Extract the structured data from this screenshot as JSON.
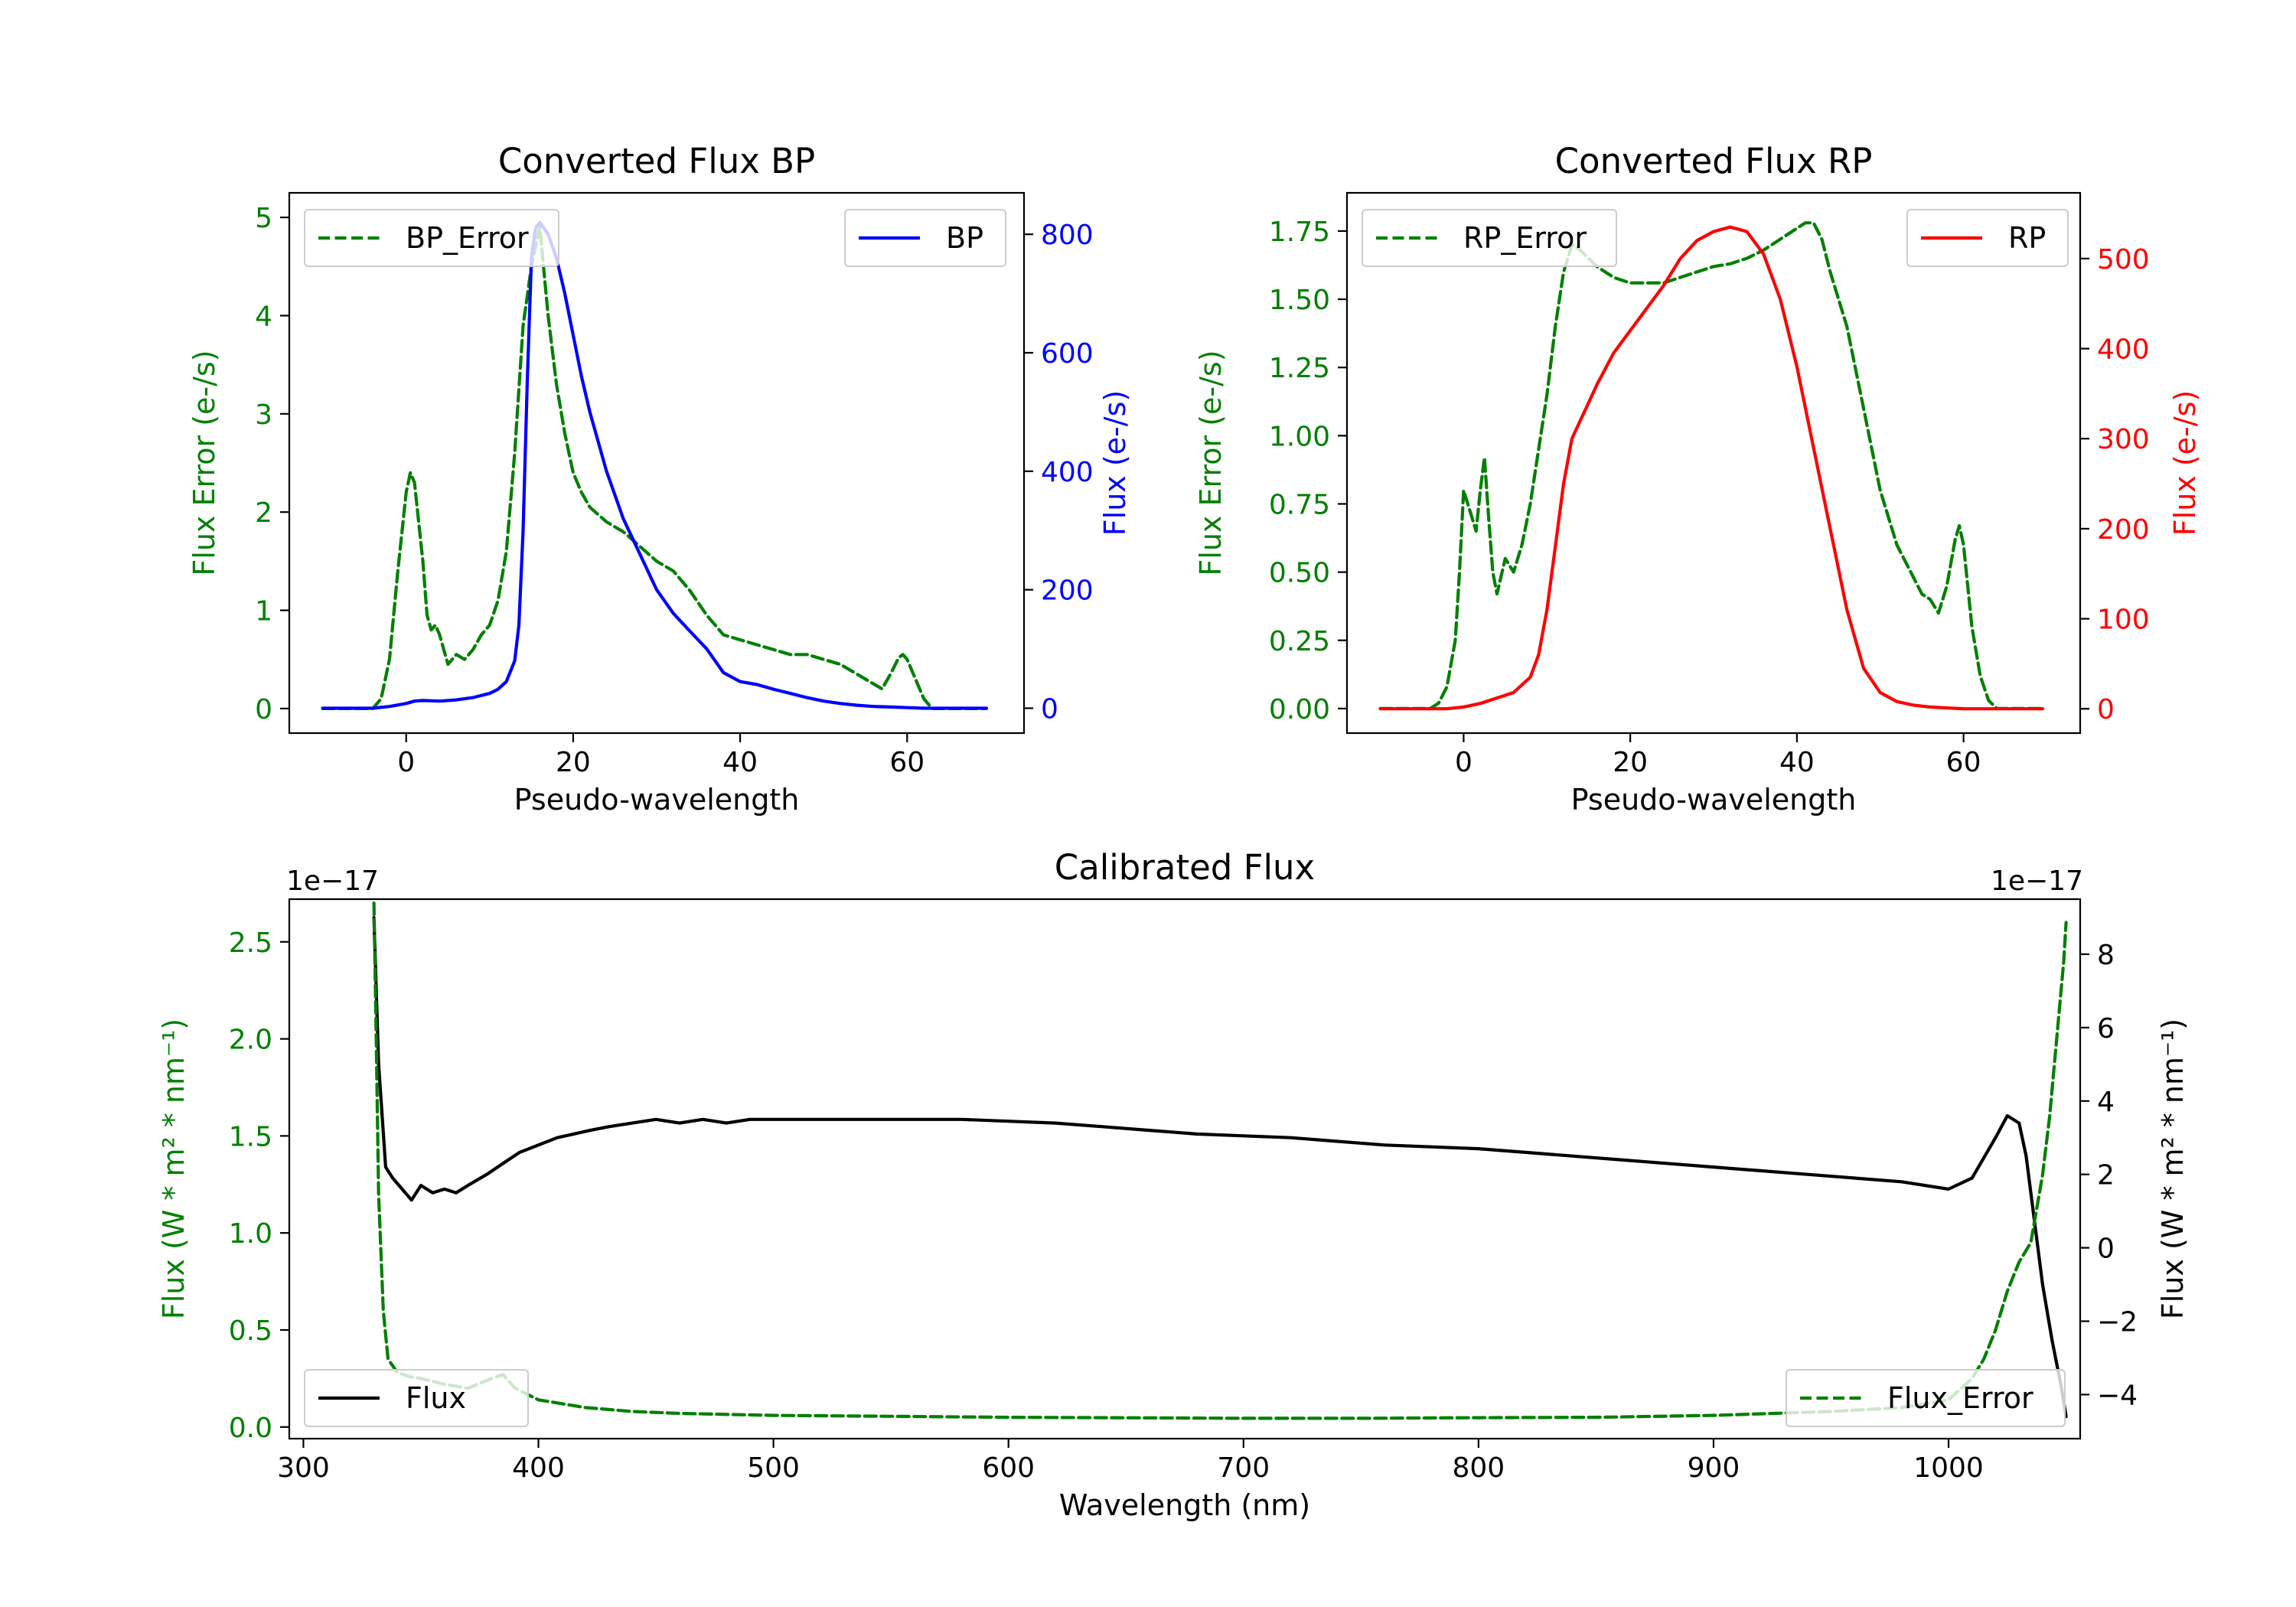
{
  "chart_data": [
    {
      "id": "bp",
      "type": "line",
      "title": "Converted Flux BP",
      "xlabel": "Pseudo-wavelength",
      "xlim": [
        -14,
        74
      ],
      "xticks": [
        0,
        20,
        40,
        60
      ],
      "left_axis": {
        "label": "Flux Error (e-/s)",
        "color": "#008000",
        "ylim": [
          -0.25,
          5.25
        ],
        "ticks": [
          0,
          1,
          2,
          3,
          4,
          5
        ],
        "tick_labels": [
          "0",
          "1",
          "2",
          "3",
          "4",
          "5"
        ]
      },
      "right_axis": {
        "label": "Flux (e-/s)",
        "color": "#0000ff",
        "ylim": [
          -42,
          870
        ],
        "ticks": [
          0,
          200,
          400,
          600,
          800
        ],
        "tick_labels": [
          "0",
          "200",
          "400",
          "600",
          "800"
        ]
      },
      "series": [
        {
          "name": "BP_Error",
          "axis": "left",
          "color": "#008000",
          "dash": "dashed",
          "legend": "top-left",
          "x": [
            -10,
            -4,
            -3,
            -2,
            -1,
            0,
            0.5,
            1,
            2,
            2.5,
            3,
            3.5,
            4,
            5,
            6,
            7,
            8,
            9,
            10,
            11,
            12,
            13,
            14,
            15,
            16,
            17,
            18,
            19,
            20,
            21,
            22,
            24,
            26,
            28,
            30,
            32,
            34,
            36,
            38,
            40,
            42,
            44,
            46,
            48,
            50,
            52,
            54,
            56,
            57,
            58,
            59,
            59.5,
            60,
            61,
            62,
            63,
            69.5
          ],
          "y": [
            0,
            0,
            0.1,
            0.5,
            1.4,
            2.2,
            2.4,
            2.3,
            1.5,
            0.95,
            0.8,
            0.85,
            0.75,
            0.45,
            0.55,
            0.5,
            0.6,
            0.75,
            0.85,
            1.1,
            1.6,
            2.6,
            3.9,
            4.5,
            4.9,
            4.0,
            3.3,
            2.8,
            2.4,
            2.2,
            2.05,
            1.9,
            1.8,
            1.65,
            1.5,
            1.4,
            1.2,
            0.95,
            0.75,
            0.7,
            0.65,
            0.6,
            0.55,
            0.55,
            0.5,
            0.45,
            0.35,
            0.25,
            0.2,
            0.35,
            0.52,
            0.55,
            0.5,
            0.3,
            0.1,
            0,
            0
          ]
        },
        {
          "name": "BP",
          "axis": "right",
          "color": "#0000ff",
          "dash": "solid",
          "legend": "top-right",
          "x": [
            -10,
            -4,
            -2,
            0,
            1,
            2,
            4,
            6,
            8,
            10,
            11,
            12,
            13,
            13.5,
            14,
            14.5,
            15,
            15.5,
            16,
            17,
            18,
            19,
            20,
            21,
            22,
            24,
            26,
            28,
            30,
            32,
            34,
            36,
            38,
            40,
            42,
            44,
            46,
            48,
            50,
            52,
            54,
            56,
            58,
            60,
            62,
            64,
            69.5
          ],
          "y": [
            0,
            0,
            3,
            8,
            12,
            13,
            12,
            14,
            18,
            25,
            32,
            45,
            80,
            140,
            300,
            550,
            760,
            810,
            820,
            800,
            760,
            700,
            630,
            560,
            500,
            400,
            320,
            260,
            200,
            160,
            130,
            100,
            60,
            45,
            40,
            32,
            25,
            18,
            12,
            8,
            5,
            3,
            2,
            1,
            0,
            0,
            0
          ]
        }
      ]
    },
    {
      "id": "rp",
      "type": "line",
      "title": "Converted Flux RP",
      "xlabel": "Pseudo-wavelength",
      "xlim": [
        -14,
        74
      ],
      "xticks": [
        0,
        20,
        40,
        60
      ],
      "left_axis": {
        "label": "Flux Error (e-/s)",
        "color": "#008000",
        "ylim": [
          -0.09,
          1.89
        ],
        "ticks": [
          0,
          0.25,
          0.5,
          0.75,
          1.0,
          1.25,
          1.5,
          1.75
        ],
        "tick_labels": [
          "0.00",
          "0.25",
          "0.50",
          "0.75",
          "1.00",
          "1.25",
          "1.50",
          "1.75"
        ]
      },
      "right_axis": {
        "label": "Flux (e-/s)",
        "color": "#ff0000",
        "ylim": [
          -27,
          573
        ],
        "ticks": [
          0,
          100,
          200,
          300,
          400,
          500
        ],
        "tick_labels": [
          "0",
          "100",
          "200",
          "300",
          "400",
          "500"
        ]
      },
      "series": [
        {
          "name": "RP_Error",
          "axis": "left",
          "color": "#008000",
          "dash": "dashed",
          "legend": "top-left",
          "x": [
            -10,
            -4,
            -3,
            -2,
            -1,
            -0.5,
            0,
            1,
            1.5,
            2,
            2.5,
            3,
            3.5,
            4,
            5,
            6,
            7,
            8,
            9,
            10,
            11,
            12,
            13,
            14,
            16,
            18,
            20,
            22,
            24,
            26,
            28,
            30,
            32,
            34,
            36,
            38,
            40,
            41,
            42,
            43,
            44,
            46,
            48,
            50,
            52,
            54,
            55,
            56,
            57,
            58,
            59,
            59.5,
            60,
            61,
            62,
            63,
            64,
            69.5
          ],
          "y": [
            0,
            0,
            0.02,
            0.08,
            0.25,
            0.5,
            0.8,
            0.7,
            0.65,
            0.8,
            0.92,
            0.7,
            0.5,
            0.42,
            0.55,
            0.5,
            0.6,
            0.75,
            0.95,
            1.15,
            1.4,
            1.6,
            1.7,
            1.68,
            1.62,
            1.58,
            1.56,
            1.56,
            1.56,
            1.58,
            1.6,
            1.62,
            1.63,
            1.65,
            1.68,
            1.72,
            1.76,
            1.78,
            1.78,
            1.72,
            1.6,
            1.4,
            1.1,
            0.8,
            0.6,
            0.48,
            0.42,
            0.4,
            0.35,
            0.45,
            0.62,
            0.67,
            0.6,
            0.3,
            0.12,
            0.03,
            0,
            0
          ]
        },
        {
          "name": "RP",
          "axis": "right",
          "color": "#ff0000",
          "dash": "solid",
          "legend": "top-right",
          "x": [
            -10,
            -2,
            0,
            2,
            4,
            6,
            8,
            9,
            10,
            11,
            12,
            13,
            14,
            15,
            16,
            18,
            20,
            22,
            24,
            26,
            28,
            30,
            32,
            34,
            36,
            38,
            40,
            42,
            44,
            46,
            48,
            50,
            52,
            54,
            56,
            58,
            60,
            62,
            64,
            69.5
          ],
          "y": [
            0,
            0,
            2,
            6,
            12,
            18,
            35,
            60,
            110,
            180,
            250,
            300,
            320,
            340,
            360,
            395,
            420,
            445,
            470,
            500,
            520,
            530,
            535,
            530,
            505,
            455,
            380,
            290,
            200,
            110,
            45,
            18,
            8,
            4,
            2,
            1,
            0,
            0,
            0,
            0
          ]
        }
      ]
    },
    {
      "id": "calibrated",
      "type": "line",
      "title": "Calibrated Flux",
      "xlabel": "Wavelength (nm)",
      "xlim": [
        294,
        1056
      ],
      "xticks": [
        300,
        400,
        500,
        600,
        700,
        800,
        900,
        1000
      ],
      "left_axis": {
        "label": "Flux (W * m² * nm⁻¹)",
        "color": "#008000",
        "offset": "1e−17",
        "ylim": [
          -0.06,
          2.72
        ],
        "ticks": [
          0,
          0.5,
          1.0,
          1.5,
          2.0,
          2.5
        ],
        "tick_labels": [
          "0.0",
          "0.5",
          "1.0",
          "1.5",
          "2.0",
          "2.5"
        ]
      },
      "right_axis": {
        "label": "Flux (W * m² * nm⁻¹)",
        "color": "#000000",
        "offset": "1e−17",
        "ylim": [
          -5.2,
          9.5
        ],
        "ticks": [
          -4,
          -2,
          0,
          2,
          4,
          6,
          8
        ],
        "tick_labels": [
          "−4",
          "−2",
          "0",
          "2",
          "4",
          "6",
          "8"
        ]
      },
      "series": [
        {
          "name": "Flux",
          "axis": "right",
          "color": "#000000",
          "dash": "solid",
          "legend": "bottom-left",
          "x": [
            330,
            332,
            335,
            338,
            342,
            346,
            350,
            355,
            360,
            365,
            370,
            378,
            385,
            392,
            400,
            408,
            415,
            422,
            430,
            440,
            450,
            460,
            470,
            480,
            490,
            500,
            520,
            540,
            560,
            580,
            600,
            620,
            640,
            660,
            680,
            700,
            720,
            740,
            760,
            780,
            800,
            820,
            840,
            860,
            880,
            900,
            920,
            940,
            960,
            980,
            1000,
            1010,
            1020,
            1025,
            1030,
            1033,
            1036,
            1040,
            1044,
            1048,
            1050
          ],
          "y": [
            9.0,
            5.0,
            2.2,
            1.9,
            1.6,
            1.3,
            1.7,
            1.5,
            1.6,
            1.5,
            1.7,
            2.0,
            2.3,
            2.6,
            2.8,
            3.0,
            3.1,
            3.2,
            3.3,
            3.4,
            3.5,
            3.4,
            3.5,
            3.4,
            3.5,
            3.5,
            3.5,
            3.5,
            3.5,
            3.5,
            3.45,
            3.4,
            3.3,
            3.2,
            3.1,
            3.05,
            3.0,
            2.9,
            2.8,
            2.75,
            2.7,
            2.6,
            2.5,
            2.4,
            2.3,
            2.2,
            2.1,
            2.0,
            1.9,
            1.8,
            1.6,
            1.9,
            3.0,
            3.6,
            3.4,
            2.5,
            1.0,
            -1.0,
            -2.5,
            -3.8,
            -4.6
          ]
        },
        {
          "name": "Flux_Error",
          "axis": "left",
          "color": "#008000",
          "dash": "dashed",
          "legend": "bottom-right",
          "x": [
            330,
            331,
            332,
            334,
            336,
            340,
            345,
            350,
            360,
            370,
            380,
            385,
            390,
            400,
            420,
            440,
            460,
            480,
            500,
            550,
            600,
            640,
            700,
            750,
            800,
            850,
            900,
            950,
            980,
            1000,
            1010,
            1015,
            1020,
            1025,
            1030,
            1035,
            1040,
            1043,
            1046,
            1049,
            1050
          ],
          "y": [
            2.7,
            2.0,
            1.2,
            0.6,
            0.35,
            0.28,
            0.26,
            0.25,
            0.22,
            0.2,
            0.25,
            0.27,
            0.2,
            0.14,
            0.1,
            0.08,
            0.07,
            0.065,
            0.06,
            0.055,
            0.05,
            0.048,
            0.045,
            0.045,
            0.048,
            0.05,
            0.06,
            0.08,
            0.1,
            0.14,
            0.25,
            0.35,
            0.5,
            0.7,
            0.85,
            0.95,
            1.3,
            1.6,
            2.0,
            2.4,
            2.6
          ]
        }
      ]
    }
  ]
}
